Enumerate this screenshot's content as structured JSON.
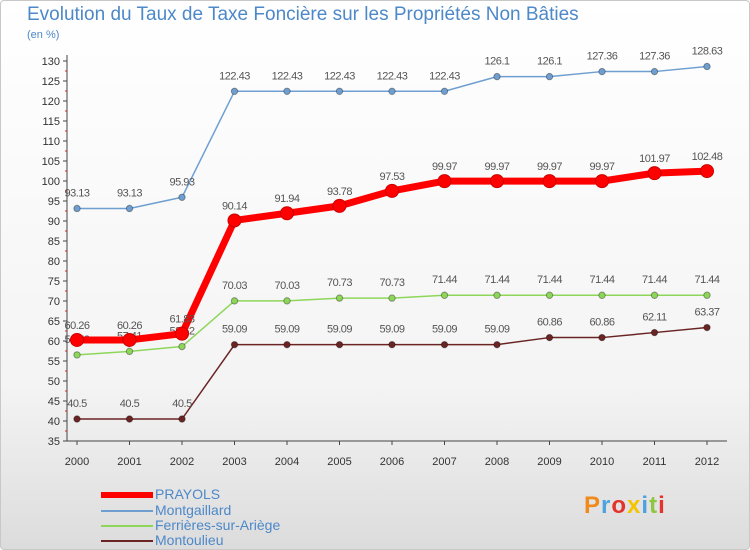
{
  "chart_data": {
    "type": "line",
    "title": "Evolution du Taux de Taxe Foncière sur les Propriétés Non Bâties",
    "ylabel": "(en %)",
    "xlabel": "",
    "x": [
      "2000",
      "2001",
      "2002",
      "2003",
      "2004",
      "2005",
      "2006",
      "2007",
      "2008",
      "2009",
      "2010",
      "2011",
      "2012"
    ],
    "ylim": [
      35,
      130
    ],
    "yticks": [
      "35",
      "40",
      "45",
      "50",
      "55",
      "60",
      "65",
      "70",
      "75",
      "80",
      "85",
      "90",
      "95",
      "100",
      "105",
      "110",
      "115",
      "120",
      "125",
      "130"
    ],
    "grid": false,
    "legend": "bottom-left",
    "series": [
      {
        "name": "Montgaillard",
        "color": "#6f9fd1",
        "values": [
          93.13,
          93.13,
          95.93,
          122.43,
          122.43,
          122.43,
          122.43,
          122.43,
          126.1,
          126.1,
          127.36,
          127.36,
          128.63
        ],
        "labels": [
          "93.13",
          "93.13",
          "95.93",
          "122.43",
          "122.43",
          "122.43",
          "122.43",
          "122.43",
          "126.1",
          "126.1",
          "127.36",
          "127.36",
          "128.63"
        ]
      },
      {
        "name": "Ferrières-sur-Ariège",
        "color": "#8ed65a",
        "values": [
          56.52,
          57.41,
          58.62,
          70.03,
          70.03,
          70.73,
          70.73,
          71.44,
          71.44,
          71.44,
          71.44,
          71.44,
          71.44
        ],
        "labels": [
          "56.52",
          "57.41",
          "58.62",
          "70.03",
          "70.03",
          "70.73",
          "70.73",
          "71.44",
          "71.44",
          "71.44",
          "71.44",
          "71.44",
          "71.44"
        ]
      },
      {
        "name": "Montoulieu",
        "color": "#6b2424",
        "values": [
          40.5,
          40.5,
          40.5,
          59.09,
          59.09,
          59.09,
          59.09,
          59.09,
          59.09,
          60.86,
          60.86,
          62.11,
          63.37
        ],
        "labels": [
          "40.5",
          "40.5",
          "40.5",
          "59.09",
          "59.09",
          "59.09",
          "59.09",
          "59.09",
          "59.09",
          "60.86",
          "60.86",
          "62.11",
          "63.37"
        ]
      },
      {
        "name": "PRAYOLS",
        "color": "#ff0000",
        "values": [
          60.26,
          60.26,
          61.83,
          90.14,
          91.94,
          93.78,
          97.53,
          99.97,
          99.97,
          99.97,
          99.97,
          101.97,
          102.48
        ],
        "labels": [
          "60.26",
          "60.26",
          "61.83",
          "90.14",
          "91.94",
          "93.78",
          "97.53",
          "99.97",
          "99.97",
          "99.97",
          "99.97",
          "101.97",
          "102.48"
        ]
      }
    ],
    "legend_entries": [
      {
        "name": "PRAYOLS",
        "color": "#ff0000"
      },
      {
        "name": "Montgaillard",
        "color": "#6f9fd1"
      },
      {
        "name": "Ferrières-sur-Ariège",
        "color": "#8ed65a"
      },
      {
        "name": "Montoulieu",
        "color": "#6b2424"
      }
    ]
  },
  "logo": {
    "text": "Proxiti",
    "colors": [
      "#f08a1c",
      "#4aa3df",
      "#e2342b",
      "#f5c400",
      "#4aa3df",
      "#8dc63f",
      "#e2342b"
    ]
  }
}
